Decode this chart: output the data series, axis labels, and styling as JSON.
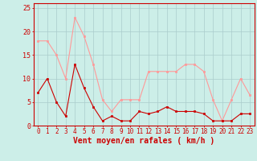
{
  "x": [
    0,
    1,
    2,
    3,
    4,
    5,
    6,
    7,
    8,
    9,
    10,
    11,
    12,
    13,
    14,
    15,
    16,
    17,
    18,
    19,
    20,
    21,
    22,
    23
  ],
  "wind_avg": [
    7,
    10,
    5,
    2,
    13,
    8,
    4,
    1,
    2,
    1,
    1,
    3,
    2.5,
    3,
    4,
    3,
    3,
    3,
    2.5,
    1,
    1,
    1,
    2.5,
    2.5
  ],
  "wind_gust": [
    18,
    18,
    15,
    10,
    23,
    19,
    13,
    5.5,
    3,
    5.5,
    5.5,
    5.5,
    11.5,
    11.5,
    11.5,
    11.5,
    13,
    13,
    11.5,
    5.5,
    1,
    5.5,
    10,
    6.5
  ],
  "avg_color": "#cc0000",
  "gust_color": "#ff9999",
  "bg_color": "#cceee8",
  "grid_color": "#aacccc",
  "xlabel": "Vent moyen/en rafales ( km/h )",
  "ylim": [
    0,
    26
  ],
  "xlim": [
    -0.5,
    23.5
  ],
  "yticks": [
    0,
    5,
    10,
    15,
    20,
    25
  ],
  "xticks": [
    0,
    1,
    2,
    3,
    4,
    5,
    6,
    7,
    8,
    9,
    10,
    11,
    12,
    13,
    14,
    15,
    16,
    17,
    18,
    19,
    20,
    21,
    22,
    23
  ],
  "xlabel_color": "#cc0000",
  "tick_color": "#cc0000",
  "axis_color": "#cc0000",
  "xlabel_fontsize": 7,
  "tick_fontsize": 5.5,
  "ytick_fontsize": 6
}
